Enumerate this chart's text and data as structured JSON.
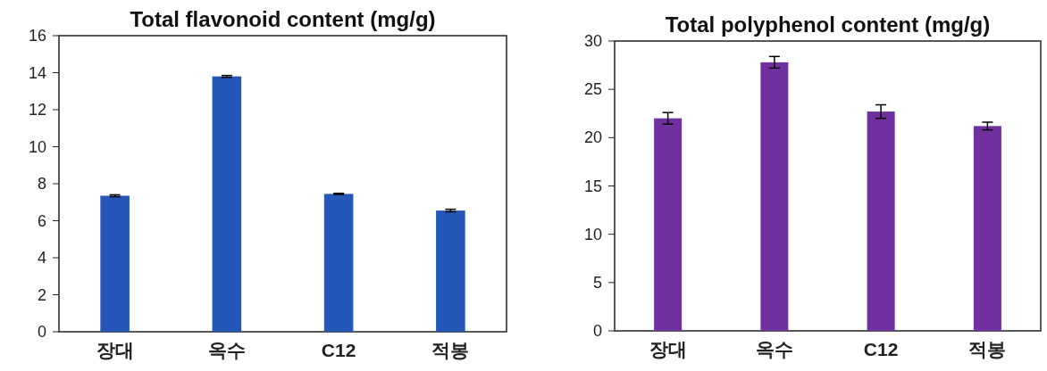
{
  "chart_data": [
    {
      "type": "bar",
      "title": "Total flavonoid content (mg/g)",
      "categories": [
        "장대",
        "옥수",
        "C12",
        "적봉"
      ],
      "values": [
        7.35,
        13.8,
        7.45,
        6.55
      ],
      "errors": [
        0.05,
        0.05,
        0.03,
        0.07
      ],
      "color": "#2457b8",
      "ylim": [
        0,
        16
      ],
      "yticks": [
        0,
        2,
        4,
        6,
        8,
        10,
        12,
        14,
        16
      ]
    },
    {
      "type": "bar",
      "title": "Total polyphenol content (mg/g)",
      "categories": [
        "장대",
        "옥수",
        "C12",
        "적봉"
      ],
      "values": [
        22.0,
        27.8,
        22.7,
        21.2
      ],
      "errors": [
        0.6,
        0.6,
        0.7,
        0.4
      ],
      "color": "#7030a0",
      "ylim": [
        0,
        30
      ],
      "yticks": [
        0,
        5,
        10,
        15,
        20,
        25,
        30
      ]
    }
  ]
}
